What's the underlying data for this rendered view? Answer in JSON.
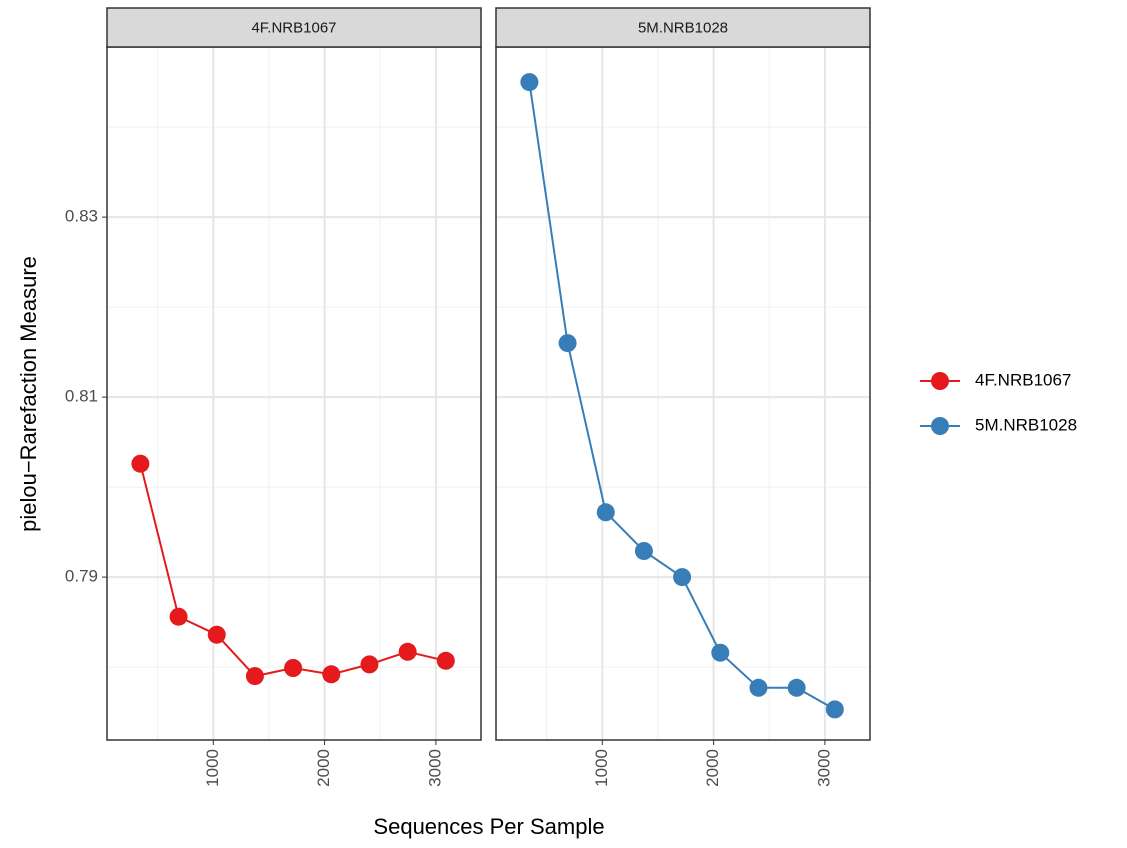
{
  "chart_data": {
    "type": "line",
    "x_label": "Sequences Per Sample",
    "y_label": "pielou−Rarefaction Measure",
    "xlim": [
      45,
      3405
    ],
    "ylim": [
      0.7719,
      0.8489
    ],
    "xticks": [
      1000,
      2000,
      3000
    ],
    "yticks": [
      0.79,
      0.81,
      0.83
    ],
    "x_minor_ticks": [
      500,
      1500,
      2500
    ],
    "y_minor_ticks": [
      0.78,
      0.8,
      0.82,
      0.84
    ],
    "grid": true,
    "legend": "right",
    "facets": [
      {
        "title": "4F.NRB1067",
        "series": [
          {
            "name": "4F.NRB1067",
            "color": "#E41A1C",
            "x": [
              345,
              688,
              1031,
              1374,
              1717,
              2060,
              2403,
              2746,
              3089
            ],
            "values": [
              0.8026,
              0.7856,
              0.7836,
              0.779,
              0.7799,
              0.7792,
              0.7803,
              0.7817,
              0.7807
            ]
          }
        ]
      },
      {
        "title": "5M.NRB1028",
        "series": [
          {
            "name": "5M.NRB1028",
            "color": "#377EB8",
            "x": [
              345,
              688,
              1031,
              1374,
              1717,
              2060,
              2403,
              2746,
              3089
            ],
            "values": [
              0.845,
              0.816,
              0.7972,
              0.7929,
              0.79,
              0.7816,
              0.7777,
              0.7777,
              0.7753
            ]
          }
        ]
      }
    ]
  }
}
